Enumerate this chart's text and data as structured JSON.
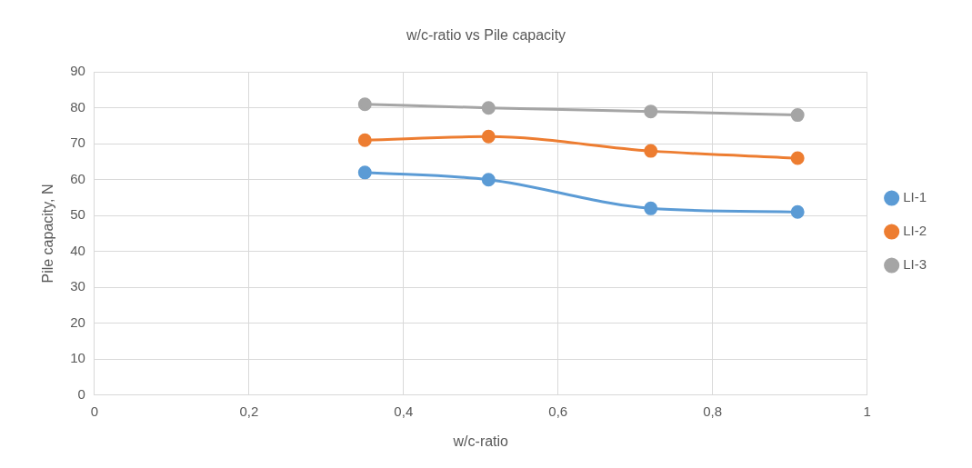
{
  "chart_data": {
    "type": "line",
    "title": "w/c-ratio vs Pile capacity",
    "xlabel": "w/c-ratio",
    "ylabel": "Pile capacity, N",
    "x": [
      0.35,
      0.51,
      0.72,
      0.91
    ],
    "series": [
      {
        "name": "LI-1",
        "color": "#5b9bd5",
        "values": [
          62,
          60,
          52,
          51
        ]
      },
      {
        "name": "LI-2",
        "color": "#ed7d31",
        "values": [
          71,
          72,
          68,
          66
        ]
      },
      {
        "name": "LI-3",
        "color": "#a5a5a5",
        "values": [
          81,
          80,
          79,
          78
        ]
      }
    ],
    "xlim": [
      0,
      1
    ],
    "xticks": [
      0,
      {
        "value": 0.2,
        "label": "0,2"
      },
      {
        "value": 0.4,
        "label": "0,4"
      },
      {
        "value": 0.6,
        "label": "0,6"
      },
      {
        "value": 0.8,
        "label": "0,8"
      },
      1
    ],
    "ylim": [
      0,
      90
    ],
    "yticks": [
      0,
      10,
      20,
      30,
      40,
      50,
      60,
      70,
      80,
      90
    ],
    "grid": true,
    "legend": "right",
    "marker": "circle",
    "line_style": "solid"
  }
}
